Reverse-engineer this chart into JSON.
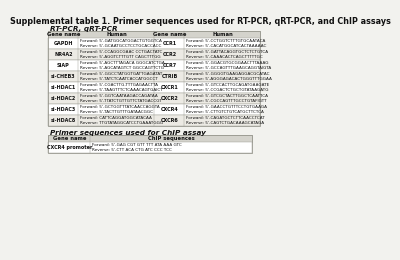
{
  "title": "Supplemental table 1. Primer sequences used for RT-PCR, qRT-PCR, and ChIP assays",
  "section1_title": "RT-PCR, qRT-PCR",
  "section2_title": "Primer sequences used for ChIP assay",
  "rt_pcr_headers": [
    "Gene name",
    "Human",
    "Gene name",
    "Human"
  ],
  "rt_pcr_rows": [
    [
      "GAPDH",
      "Forward: 5'-GATGGCATGGACTGTGGTCA\nReverse: 5'-GCAATGCCTCCTGCACCACC",
      "CCR1",
      "Forward: 5'-CCTGGTCTTTGTGCAATACA\nReverse: 5'-CACATGGCATCACTAAAAAC"
    ],
    [
      "NR4A2",
      "Forward: 5'-CCAGGCGAAC CCTGACTATC\nReverse: 5'-AGGTCTTTGTT CAGCTTTGG",
      "CCR2",
      "Forward: 5'-GATTACAGGTGCTCTCTGTCA\nReverse: 5'-CAAACACTCAGCTTTTTGC"
    ],
    [
      "SIAP",
      "Forward: 5'-AGCTTTAGACA GGGCATCTGA\nReverse: 5'-AGCATAGTCT GGCCAGTTCTG",
      "CCR7",
      "Forward: 5'-GGACGTGCGGAACTTTAAAG\nReverse: 5'-GCCAGTTTGAAGCAGGTAIGTA"
    ],
    [
      "si-CHEB3",
      "Forward: 5'-GGCCTATGGTGATTGAGATAT\nReverse: 5'-TATCTCAATCACCATGGCCT",
      "CTRIB",
      "Forward: 5'-GGGGTGAAGAGGACGCATAC\nReverse: 5'-AGGGAGACACTGGGTTTGGAA"
    ],
    [
      "si-HDAC1",
      "Forward: 5'-CGACTTG-TTTGAGAACTTA\nReverse: 5'-TAAGTTTCTCAAACAGTGAICT",
      "CXCR1",
      "Forward: 5'-GTCCACTTGCAGATGAAGATE\nReverse: 5'-CCGACTCTGCTGTATAAGATG"
    ],
    [
      "si-HDAC2",
      "Forward: 5'-GGTCAATAAGACCAGATAA\nReverse: 5'-TTATCTGTTGTTCTATGACCGT",
      "CXCR2",
      "Forward: 5'-GTCGCTACTTGGCTCAATTCA\nReverse: 5'-CGCCAGTTTGCCTGTAFIGTT"
    ],
    [
      "si-HDAC3",
      "Forward: 5'-GCTGGTTTATCAACCAGGTA\nReverse: 5'-TACTTGTTTGATAACGGC",
      "CXCR4",
      "Forward: 5'-GAACCTGTTTCCTGTGAAGA\nReverse: 5'-CTTGTCTGTCATGCTTCTCA"
    ],
    [
      "si-HDAC8",
      "Forward: CATTCAGGATGGCATACAA\nReverse: TTGTATAGGCATCCTGAAATGGG",
      "CXCR6",
      "Forward: 5'-CAGATGCTCTTCAACCTCAT\nReverse: 5'-CAGTCTGACAAAGCATAGA"
    ]
  ],
  "chip_headers": [
    "Gene name",
    "ChIP sequences"
  ],
  "chip_rows": [
    [
      "CXCR4 promoter",
      "Forward: 5'-GAG CGT GTT TTT ATA AAA GTC\nReverse: 5'-CTT ACA CTG ATC CCC TCC"
    ]
  ],
  "bg_color": "#f2f2ee",
  "header_bg": "#d4d3cc",
  "table_border": "#999990",
  "text_color": "#111111",
  "title_fontsize": 5.8,
  "section_fontsize": 5.2,
  "header_fontsize": 3.8,
  "cell_gene_fontsize": 3.5,
  "cell_seq_fontsize": 3.0
}
